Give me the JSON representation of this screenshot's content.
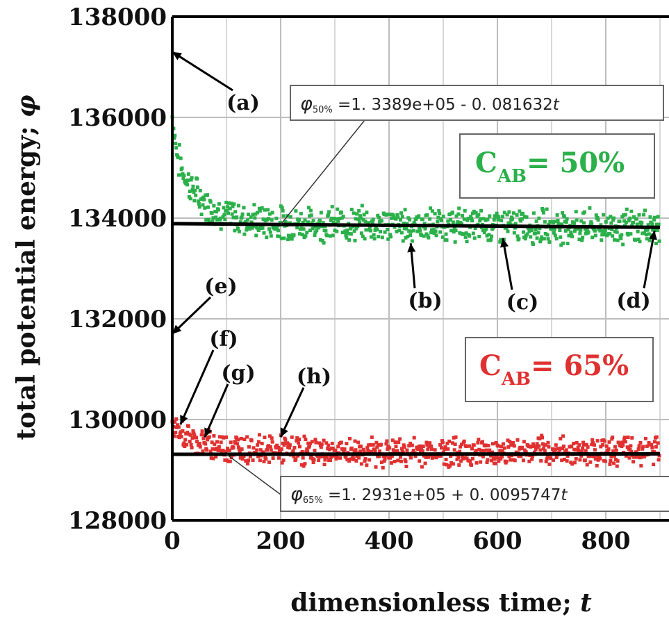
{
  "chart_data": {
    "type": "scatter",
    "xlabel": "dimensionless time; t",
    "ylabel": "total potential energy; φ",
    "xlim": [
      0,
      900
    ],
    "ylim": [
      128000,
      138000
    ],
    "x_ticks": [
      0,
      200,
      400,
      600,
      800
    ],
    "y_ticks": [
      128000,
      130000,
      132000,
      134000,
      136000,
      138000
    ],
    "x_tick_labels": [
      "0",
      "200",
      "400",
      "600",
      "800"
    ],
    "y_tick_labels": [
      "128000",
      "130000",
      "132000",
      "134000",
      "136000",
      "138000"
    ],
    "grid": true,
    "series": [
      {
        "label": "C_AB = 50%",
        "color": "#2bb04a",
        "x": [
          0,
          10,
          20,
          30,
          50,
          75,
          100,
          150,
          200,
          300,
          400,
          500,
          600,
          700,
          800,
          900
        ],
        "y": [
          136000,
          135200,
          134900,
          134700,
          134400,
          134200,
          134050,
          133950,
          133900,
          133880,
          133870,
          133860,
          133850,
          133840,
          133830,
          133820
        ],
        "fit": {
          "equation": "1. 3389e+05  -  0. 081632t",
          "intercept": 133890,
          "slope": -0.081632
        }
      },
      {
        "label": "C_AB = 65%",
        "color": "#e03030",
        "x": [
          0,
          20,
          50,
          100,
          200,
          300,
          400,
          500,
          600,
          700,
          800,
          900
        ],
        "y": [
          129800,
          129700,
          129550,
          129450,
          129400,
          129350,
          129350,
          129360,
          129360,
          129370,
          129380,
          129390
        ],
        "fit": {
          "equation": "1. 2931e+05  +  0. 0095747t",
          "intercept": 129310,
          "slope": 0.0095747
        }
      }
    ],
    "annotations": [
      {
        "text": "(a)",
        "x": 0,
        "y": 137300
      },
      {
        "text": "(b)",
        "x": 440,
        "y": 133500
      },
      {
        "text": "(c)",
        "x": 610,
        "y": 133600
      },
      {
        "text": "(d)",
        "x": 890,
        "y": 133750
      },
      {
        "text": "(e)",
        "x": 0,
        "y": 131700
      },
      {
        "text": "(f)",
        "x": 15,
        "y": 129900
      },
      {
        "text": "(g)",
        "x": 60,
        "y": 129650
      },
      {
        "text": "(h)",
        "x": 200,
        "y": 129650
      }
    ]
  },
  "labels": {
    "eq50_sym": "φ",
    "eq50_sub": "50%",
    "eq50_text": " =1. 3389e+05  -  0. 081632",
    "eq50_t": "t",
    "eq65_sym": "φ",
    "eq65_sub": "65%",
    "eq65_text": " =1. 2931e+05  +  0. 0095747",
    "eq65_t": "t",
    "c50_main": "C",
    "c50_sub": "AB",
    "c50_value": "= 50%",
    "c65_main": "C",
    "c65_sub": "AB",
    "c65_value": "= 65%",
    "xlabel_text": "dimensionless time; ",
    "xlabel_var": "t",
    "ylabel_text": "total potential energy; ",
    "ylabel_var": "φ"
  },
  "colors": {
    "green": "#2bb04a",
    "red": "#e03030",
    "fit": "#000000",
    "grid": "#bdbdbd"
  }
}
